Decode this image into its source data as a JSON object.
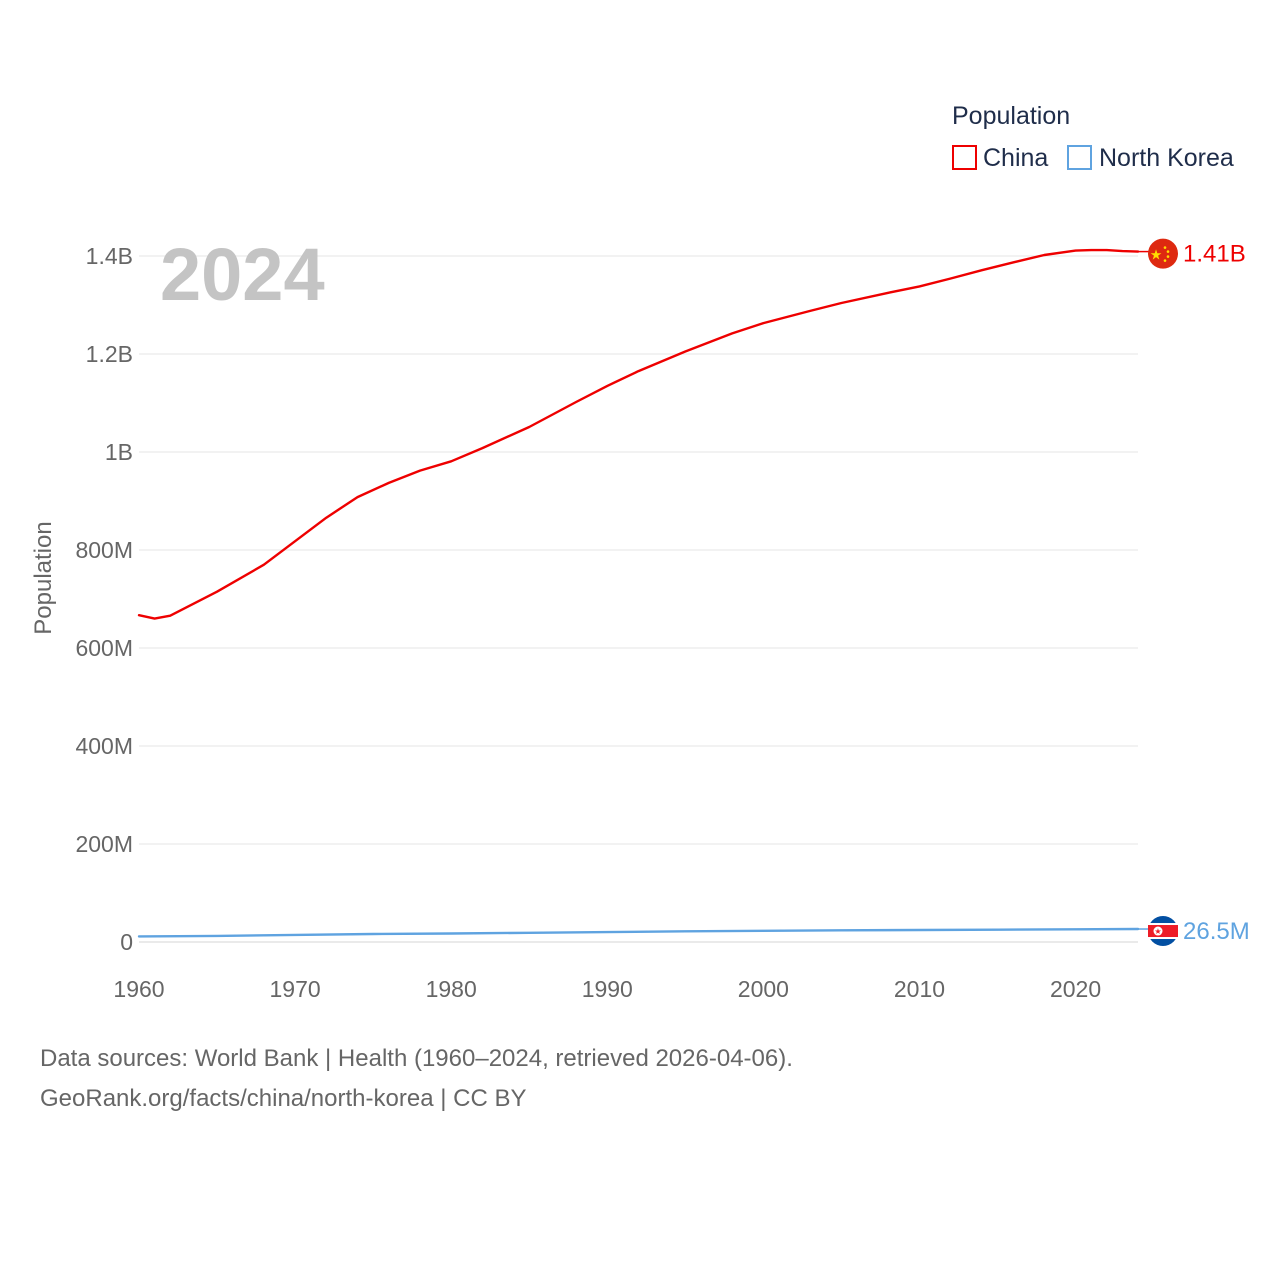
{
  "chart_data": {
    "type": "line",
    "current_year": "2024",
    "ylabel": "Population",
    "xlabel": "",
    "xlim": [
      1960,
      2024
    ],
    "ylim": [
      0,
      1400000000
    ],
    "x_ticks": [
      1960,
      1970,
      1980,
      1990,
      2000,
      2010,
      2020
    ],
    "x_tick_labels": [
      "1960",
      "1970",
      "1980",
      "1990",
      "2000",
      "2010",
      "2020"
    ],
    "y_ticks": [
      0,
      200000000,
      400000000,
      600000000,
      800000000,
      1000000000,
      1200000000,
      1400000000
    ],
    "y_tick_labels": [
      "0",
      "200M",
      "400M",
      "600M",
      "800M",
      "1B",
      "1.2B",
      "1.4B"
    ],
    "legend": {
      "title": "Population",
      "position": "top-right",
      "items": [
        "China",
        "North Korea"
      ]
    },
    "series": [
      {
        "name": "China",
        "color": "#ee0000",
        "end_label": "1.41B",
        "flag": "china-flag",
        "points": [
          [
            1960,
            667000000
          ],
          [
            1961,
            660000000
          ],
          [
            1962,
            666000000
          ],
          [
            1965,
            715000000
          ],
          [
            1968,
            770000000
          ],
          [
            1970,
            818000000
          ],
          [
            1972,
            866000000
          ],
          [
            1974,
            908000000
          ],
          [
            1976,
            937000000
          ],
          [
            1978,
            962000000
          ],
          [
            1980,
            981000000
          ],
          [
            1982,
            1008000000
          ],
          [
            1985,
            1051000000
          ],
          [
            1988,
            1102000000
          ],
          [
            1990,
            1135000000
          ],
          [
            1992,
            1165000000
          ],
          [
            1995,
            1205000000
          ],
          [
            1998,
            1242000000
          ],
          [
            2000,
            1263000000
          ],
          [
            2003,
            1288000000
          ],
          [
            2005,
            1304000000
          ],
          [
            2008,
            1325000000
          ],
          [
            2010,
            1338000000
          ],
          [
            2012,
            1354000000
          ],
          [
            2014,
            1371000000
          ],
          [
            2016,
            1387000000
          ],
          [
            2018,
            1402000000
          ],
          [
            2020,
            1411000000
          ],
          [
            2021,
            1412000000
          ],
          [
            2022,
            1412000000
          ],
          [
            2023,
            1410000000
          ],
          [
            2024,
            1409000000
          ]
        ]
      },
      {
        "name": "North Korea",
        "color": "#5fa3e0",
        "end_label": "26.5M",
        "flag": "north-korea-flag",
        "points": [
          [
            1960,
            11400000
          ],
          [
            1965,
            12500000
          ],
          [
            1970,
            14400000
          ],
          [
            1975,
            16300000
          ],
          [
            1980,
            17400000
          ],
          [
            1985,
            18700000
          ],
          [
            1990,
            20300000
          ],
          [
            1995,
            21800000
          ],
          [
            2000,
            22900000
          ],
          [
            2005,
            23800000
          ],
          [
            2010,
            24500000
          ],
          [
            2015,
            25200000
          ],
          [
            2020,
            25900000
          ],
          [
            2024,
            26500000
          ]
        ]
      }
    ]
  },
  "footer": {
    "line1": "Data sources: World Bank | Health (1960–2024, retrieved 2026-04-06).",
    "line2": "GeoRank.org/facts/china/north-korea | CC BY"
  }
}
